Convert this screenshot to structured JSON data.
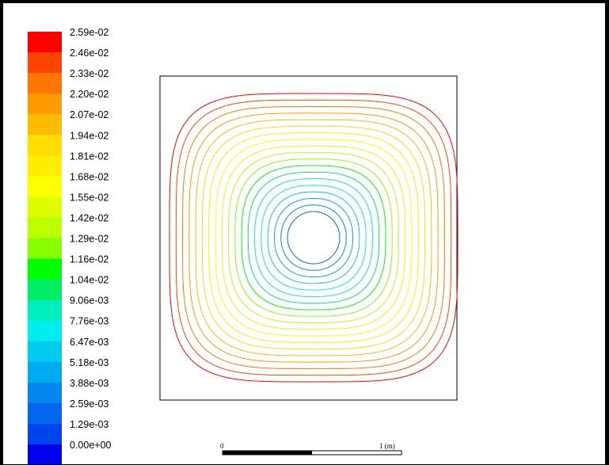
{
  "chart_data": {
    "type": "contour",
    "colorbar": {
      "labels": [
        "2.59e-02",
        "2.46e-02",
        "2.33e-02",
        "2.20e-02",
        "2.07e-02",
        "1.94e-02",
        "1.81e-02",
        "1.68e-02",
        "1.55e-02",
        "1.42e-02",
        "1.29e-02",
        "1.16e-02",
        "1.04e-02",
        "9.06e-03",
        "7.76e-03",
        "6.47e-03",
        "5.18e-03",
        "3.88e-03",
        "2.59e-03",
        "1.29e-03",
        "0.00e+00"
      ],
      "colors": [
        "#ff0000",
        "#ff4400",
        "#ff7700",
        "#ff9900",
        "#ffbb00",
        "#ffdd00",
        "#ffee00",
        "#ffff00",
        "#ddff00",
        "#bbff00",
        "#88ff00",
        "#00ff00",
        "#00ee66",
        "#00eebb",
        "#00eeee",
        "#00ccee",
        "#00aaee",
        "#0088ee",
        "#0066ee",
        "#0044ee",
        "#0000ee"
      ],
      "min": 0.0,
      "max": 0.0259
    },
    "contour_levels": [
      0.0259,
      0.0246,
      0.0233,
      0.022,
      0.0207,
      0.0194,
      0.0181,
      0.0168,
      0.0155,
      0.0142,
      0.0129,
      0.0116,
      0.0104,
      0.00906,
      0.00776,
      0.00647,
      0.00518,
      0.00388,
      0.00259
    ],
    "scale_bar": {
      "start_label": "0",
      "end_label": "1 (m)"
    }
  }
}
